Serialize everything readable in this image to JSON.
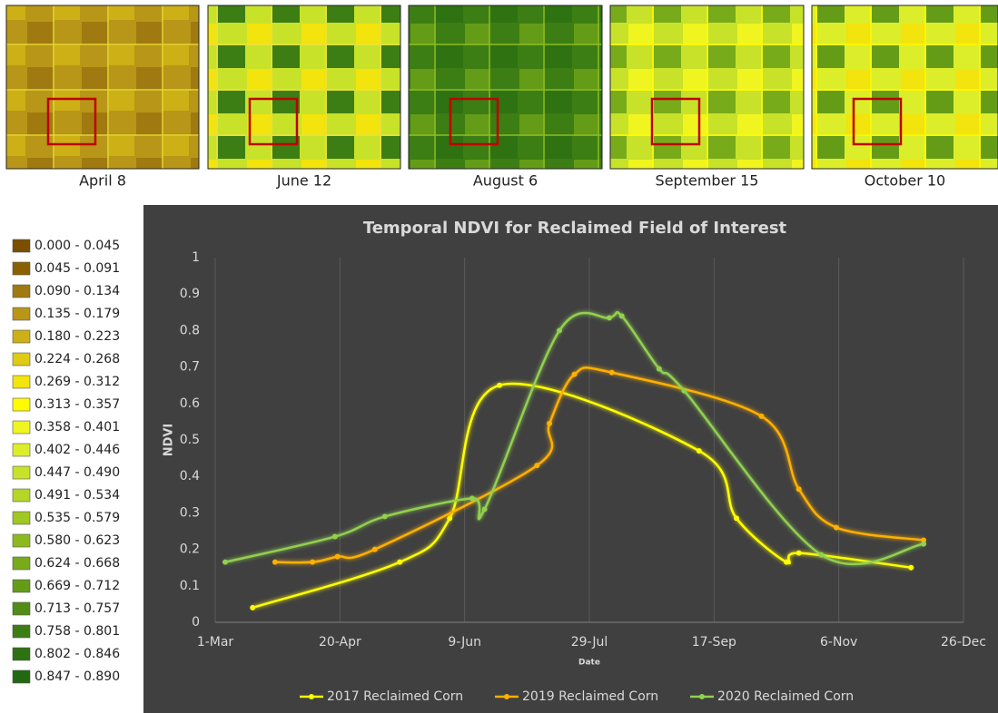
{
  "images": [
    {
      "caption": "April 8"
    },
    {
      "caption": "June 12"
    },
    {
      "caption": "August 6"
    },
    {
      "caption": "September 15"
    },
    {
      "caption": "October 10"
    }
  ],
  "ndvi_legend": {
    "items": [
      {
        "label": "0.000 - 0.045",
        "color": "#7a4f00"
      },
      {
        "label": "0.045 - 0.091",
        "color": "#8a6100"
      },
      {
        "label": "0.090 - 0.134",
        "color": "#a07a10"
      },
      {
        "label": "0.135 - 0.179",
        "color": "#b89618"
      },
      {
        "label": "0.180 - 0.223",
        "color": "#ccb016"
      },
      {
        "label": "0.224 - 0.268",
        "color": "#dfca14"
      },
      {
        "label": "0.269 - 0.312",
        "color": "#f2e40c"
      },
      {
        "label": "0.313 - 0.357",
        "color": "#fffb00"
      },
      {
        "label": "0.358 - 0.401",
        "color": "#f0f520"
      },
      {
        "label": "0.402 - 0.446",
        "color": "#dcee2a"
      },
      {
        "label": "0.447 - 0.490",
        "color": "#c8e22a"
      },
      {
        "label": "0.491 - 0.534",
        "color": "#b4d626"
      },
      {
        "label": "0.535 - 0.579",
        "color": "#a0c822"
      },
      {
        "label": "0.580 - 0.623",
        "color": "#8cba1e"
      },
      {
        "label": "0.624 - 0.668",
        "color": "#78ab1a"
      },
      {
        "label": "0.669 - 0.712",
        "color": "#649c18"
      },
      {
        "label": "0.713 - 0.757",
        "color": "#508c16"
      },
      {
        "label": "0.758 - 0.801",
        "color": "#3c7e14"
      },
      {
        "label": "0.802 - 0.846",
        "color": "#2e7212"
      },
      {
        "label": "0.847 - 0.890",
        "color": "#226810"
      }
    ]
  },
  "chart_data": {
    "type": "line",
    "title": "Temporal NDVI for Reclaimed Field of Interest",
    "x_label": "Date",
    "y_label": "NDVI",
    "xlim": [
      60,
      360
    ],
    "xticks": [
      {
        "value": 60,
        "label": "1-Mar"
      },
      {
        "value": 110,
        "label": "20-Apr"
      },
      {
        "value": 160,
        "label": "9-Jun"
      },
      {
        "value": 210,
        "label": "29-Jul"
      },
      {
        "value": 260,
        "label": "17-Sep"
      },
      {
        "value": 310,
        "label": "6-Nov"
      },
      {
        "value": 360,
        "label": "26-Dec"
      }
    ],
    "ylim": [
      0,
      1
    ],
    "yticks": [
      0,
      0.1,
      0.2,
      0.3,
      0.4,
      0.5,
      0.6,
      0.7,
      0.8,
      0.9,
      1
    ],
    "grid": "x",
    "legend": "bottom",
    "series": [
      {
        "name": "2017 Reclaimed Corn",
        "color": "#ffff00",
        "x": [
          75,
          134,
          154,
          174,
          254,
          269,
          289,
          294,
          339
        ],
        "values": [
          0.04,
          0.165,
          0.285,
          0.65,
          0.47,
          0.285,
          0.165,
          0.19,
          0.15
        ]
      },
      {
        "name": "2019 Reclaimed Corn",
        "color": "#ffb000",
        "x": [
          84,
          99,
          109,
          124,
          189,
          194,
          204,
          219,
          279,
          294,
          309,
          344
        ],
        "values": [
          0.165,
          0.165,
          0.18,
          0.2,
          0.43,
          0.545,
          0.68,
          0.685,
          0.565,
          0.365,
          0.26,
          0.225
        ]
      },
      {
        "name": "2020 Reclaimed Corn",
        "color": "#92d050",
        "x": [
          64,
          108,
          128,
          163,
          168,
          198,
          218,
          223,
          238,
          248,
          303,
          344
        ],
        "values": [
          0.165,
          0.235,
          0.29,
          0.34,
          0.31,
          0.8,
          0.835,
          0.84,
          0.695,
          0.635,
          0.185,
          0.215
        ]
      }
    ]
  }
}
